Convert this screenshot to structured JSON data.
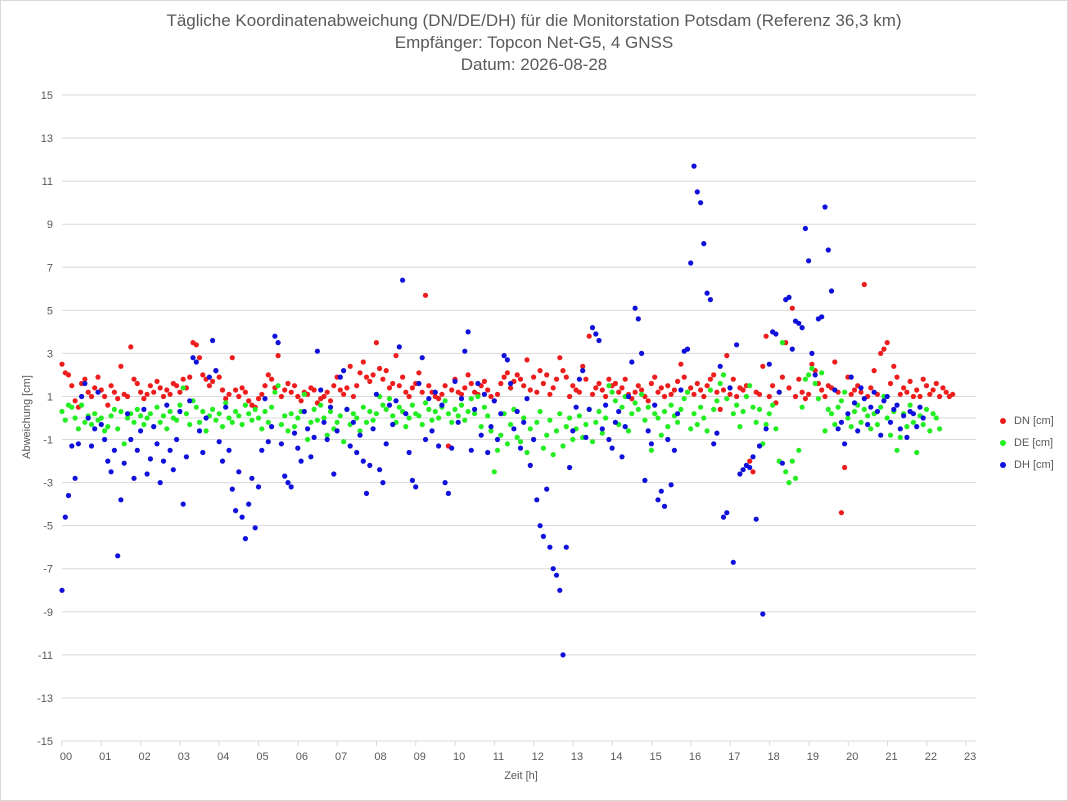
{
  "chart_data": {
    "type": "scatter",
    "title": "Tägliche Koordinatenabweichung (DN/DE/DH) für die Monitorstation Potsdam (Referenz 36,3 km)",
    "subtitle": "Empfänger: Topcon Net-G5, 4 GNSS",
    "date_line": "Datum: 2026-08-28",
    "xlabel": "Zeit [h]",
    "ylabel": "Abweichung [cm]",
    "xlim": [
      0,
      23.25
    ],
    "ylim": [
      -15,
      15
    ],
    "x_ticks": [
      "00",
      "01",
      "02",
      "03",
      "04",
      "05",
      "06",
      "07",
      "08",
      "09",
      "10",
      "11",
      "12",
      "13",
      "14",
      "15",
      "16",
      "17",
      "18",
      "19",
      "20",
      "21",
      "22",
      "23"
    ],
    "y_ticks": [
      "15",
      "13",
      "11",
      "9",
      "7",
      "5",
      "3",
      "1",
      "-1",
      "-3",
      "-5",
      "-7",
      "-9",
      "-11",
      "-13",
      "-15"
    ],
    "legend_position": "right",
    "sampling_step_h": 0.0833,
    "series": [
      {
        "name": "DN [cm]",
        "color": "#ee1c1c",
        "values": [
          2.5,
          2.1,
          2.0,
          1.5,
          0.8,
          0.5,
          1.6,
          1.8,
          1.2,
          1.0,
          1.4,
          1.9,
          1.3,
          1.0,
          0.6,
          1.5,
          1.2,
          0.9,
          2.4,
          1.1,
          1.0,
          3.3,
          1.8,
          1.6,
          1.2,
          0.9,
          1.1,
          1.5,
          1.2,
          1.7,
          1.4,
          1.0,
          1.3,
          1.1,
          1.6,
          1.5,
          1.2,
          1.8,
          1.4,
          1.9,
          3.5,
          3.4,
          2.8,
          2.0,
          1.8,
          1.5,
          1.7,
          2.2,
          1.9,
          1.3,
          0.9,
          1.1,
          2.8,
          1.3,
          1.0,
          1.4,
          1.2,
          0.8,
          0.6,
          0.5,
          0.9,
          1.1,
          1.5,
          2.0,
          1.8,
          1.4,
          2.9,
          1.0,
          1.3,
          1.6,
          1.2,
          1.5,
          1.0,
          0.8,
          1.2,
          1.1,
          1.4,
          1.3,
          0.7,
          0.9,
          1.0,
          1.2,
          0.8,
          1.5,
          1.9,
          1.3,
          1.1,
          1.4,
          2.4,
          1.0,
          1.5,
          2.1,
          2.6,
          1.9,
          1.7,
          2.0,
          3.5,
          2.3,
          1.8,
          2.2,
          1.4,
          1.6,
          2.9,
          1.5,
          1.9,
          1.2,
          1.0,
          1.4,
          1.6,
          2.1,
          1.2,
          5.7,
          1.5,
          1.2,
          1.0,
          0.9,
          1.1,
          1.5,
          -1.3,
          1.3,
          1.8,
          1.2,
          1.1,
          1.4,
          2.0,
          1.6,
          1.2,
          1.1,
          1.5,
          1.7,
          1.3,
          1.0,
          0.8,
          1.1,
          1.6,
          1.9,
          2.1,
          1.4,
          1.7,
          2.0,
          1.8,
          1.5,
          2.7,
          1.3,
          1.9,
          1.2,
          2.2,
          1.6,
          2.0,
          1.1,
          1.4,
          1.8,
          2.8,
          2.2,
          1.9,
          1.0,
          1.5,
          1.3,
          1.2,
          2.4,
          1.8,
          3.8,
          1.1,
          1.4,
          1.6,
          1.3,
          1.0,
          1.8,
          1.5,
          1.6,
          1.2,
          1.4,
          1.8,
          1.1,
          0.9,
          1.2,
          1.5,
          1.3,
          1.0,
          0.8,
          1.6,
          1.9,
          1.2,
          1.4,
          1.0,
          1.5,
          1.1,
          1.3,
          1.7,
          2.5,
          1.9,
          1.2,
          1.4,
          1.1,
          1.6,
          1.3,
          1.0,
          1.5,
          1.8,
          2.0,
          1.2,
          0.4,
          1.3,
          2.9,
          1.1,
          1.8,
          1.0,
          1.4,
          1.3,
          1.5,
          -2.0,
          -2.5,
          1.2,
          1.1,
          2.4,
          3.8,
          1.0,
          1.5,
          0.7,
          1.2,
          1.9,
          3.5,
          1.4,
          5.1,
          1.0,
          1.8,
          1.2,
          0.9,
          1.1,
          2.5,
          2.2,
          1.6,
          1.3,
          1.0,
          1.5,
          1.4,
          2.6,
          1.2,
          -4.4,
          -2.3,
          1.9,
          1.1,
          1.3,
          1.5,
          1.2,
          6.2,
          1.0,
          1.4,
          2.2,
          1.1,
          3.0,
          3.2,
          3.5,
          1.6,
          2.4,
          1.9,
          1.1,
          1.4,
          1.2,
          1.7,
          1.0,
          1.3,
          1.0,
          1.8,
          1.5,
          1.1,
          1.3,
          1.6,
          1.0,
          1.4,
          1.2,
          1.0,
          1.1
        ]
      },
      {
        "name": "DE [cm]",
        "color": "#22ee22",
        "values": [
          0.3,
          -0.1,
          0.6,
          0.5,
          0.0,
          -0.5,
          0.6,
          -0.2,
          0.1,
          -0.3,
          0.2,
          -0.1,
          0.0,
          -0.6,
          -0.4,
          0.1,
          0.4,
          -0.5,
          0.3,
          -1.2,
          0.0,
          0.2,
          -0.2,
          0.4,
          0.1,
          -0.3,
          0.0,
          0.2,
          -0.4,
          0.5,
          -0.2,
          0.1,
          -0.5,
          0.3,
          0.0,
          -0.1,
          0.6,
          1.4,
          0.2,
          -0.3,
          0.8,
          0.5,
          -0.2,
          0.3,
          -0.6,
          0.1,
          0.4,
          -0.1,
          0.2,
          -0.4,
          0.7,
          0.0,
          -0.2,
          0.3,
          0.1,
          -0.3,
          0.6,
          0.2,
          -0.1,
          0.4,
          0.0,
          -0.5,
          0.3,
          -0.2,
          0.5,
          1.2,
          1.5,
          -0.3,
          0.1,
          -0.6,
          0.2,
          -0.4,
          0.0,
          0.3,
          1.1,
          -1.0,
          -0.2,
          0.4,
          -0.1,
          0.6,
          0.0,
          -0.8,
          0.3,
          -0.5,
          -0.2,
          0.1,
          -1.1,
          0.4,
          -0.3,
          0.2,
          0.0,
          -0.6,
          0.5,
          -0.2,
          0.3,
          -0.1,
          0.2,
          1.0,
          0.6,
          0.4,
          0.9,
          0.1,
          -0.2,
          0.5,
          0.3,
          -0.4,
          0.0,
          0.6,
          0.2,
          0.1,
          -0.3,
          0.7,
          0.4,
          -0.1,
          0.3,
          0.0,
          0.5,
          0.8,
          0.2,
          -0.2,
          0.4,
          0.1,
          0.6,
          -0.1,
          0.3,
          0.9,
          0.2,
          1.0,
          -0.4,
          0.5,
          0.1,
          -0.6,
          -2.5,
          -1.5,
          -0.8,
          0.2,
          -1.2,
          -0.3,
          0.4,
          -0.9,
          -1.1,
          0.0,
          -1.6,
          -0.5,
          -1.0,
          -0.2,
          0.3,
          -1.4,
          -0.8,
          -0.1,
          -1.7,
          -0.6,
          0.2,
          -1.3,
          -0.4,
          0.0,
          -1.0,
          -0.5,
          0.1,
          -0.9,
          -0.3,
          0.4,
          -1.1,
          -0.2,
          0.3,
          -0.7,
          0.0,
          1.5,
          1.2,
          0.8,
          -0.3,
          0.5,
          1.0,
          -0.6,
          0.2,
          0.7,
          0.4,
          1.1,
          -0.1,
          0.5,
          -1.5,
          0.2,
          0.0,
          -0.8,
          0.3,
          -0.4,
          0.6,
          0.1,
          -0.2,
          0.4,
          0.9,
          1.2,
          -0.5,
          0.2,
          -0.3,
          0.5,
          0.0,
          -0.6,
          1.3,
          0.4,
          0.8,
          1.6,
          2.0,
          0.9,
          1.4,
          0.2,
          0.6,
          -0.4,
          0.3,
          1.0,
          1.5,
          0.5,
          -0.2,
          0.4,
          -1.2,
          -0.3,
          0.2,
          0.6,
          -0.5,
          -2.0,
          3.5,
          -2.5,
          -3.0,
          -2.0,
          -2.8,
          -1.5,
          0.5,
          1.8,
          2.0,
          2.3,
          1.6,
          0.9,
          2.1,
          -0.6,
          0.4,
          0.2,
          -0.3,
          0.5,
          0.8,
          1.2,
          0.0,
          -0.4,
          0.3,
          0.6,
          -0.2,
          0.4,
          0.1,
          -0.5,
          0.2,
          -0.3,
          0.5,
          1.0,
          0.0,
          -0.8,
          0.3,
          -1.5,
          -0.9,
          0.2,
          -0.4,
          0.6,
          -0.2,
          -1.6,
          0.1,
          -0.3,
          0.4,
          -0.6,
          0.2,
          0.0,
          -0.5
        ]
      },
      {
        "name": "DH [cm]",
        "color": "#1010dd",
        "values": [
          -8.0,
          -4.6,
          -3.6,
          -1.3,
          -2.8,
          -1.2,
          1.0,
          1.6,
          0.0,
          -1.3,
          -0.5,
          1.2,
          -0.3,
          -1.0,
          -2.0,
          -2.5,
          -1.5,
          -6.4,
          -3.8,
          -2.1,
          0.2,
          -1.0,
          -2.8,
          -1.5,
          -0.6,
          0.4,
          -2.6,
          -1.9,
          -0.4,
          -1.2,
          -3.0,
          -2.0,
          0.6,
          -1.5,
          -2.4,
          -1.0,
          0.3,
          -4.0,
          -1.8,
          0.8,
          2.8,
          2.6,
          -0.6,
          -1.6,
          0.0,
          1.9,
          3.6,
          2.2,
          -1.1,
          -2.0,
          0.5,
          -1.5,
          -3.3,
          -4.3,
          -2.5,
          -4.6,
          -5.6,
          -4.0,
          -2.8,
          -5.1,
          -3.2,
          -1.5,
          0.9,
          -1.1,
          -0.4,
          3.8,
          3.5,
          -1.2,
          -2.7,
          -3.0,
          -3.2,
          -0.7,
          -1.4,
          -2.0,
          0.3,
          -0.5,
          -1.8,
          -0.9,
          3.1,
          1.3,
          -0.2,
          -1.0,
          0.5,
          -2.6,
          -0.6,
          1.9,
          2.2,
          0.4,
          -1.3,
          -0.2,
          -1.6,
          -0.8,
          -2.0,
          -3.5,
          -2.2,
          -0.5,
          1.1,
          -2.4,
          -3.0,
          -1.2,
          0.6,
          -0.3,
          0.8,
          3.3,
          6.4,
          0.2,
          -1.6,
          -2.9,
          -3.2,
          1.6,
          2.8,
          -1.0,
          0.9,
          -0.6,
          1.2,
          -1.3,
          0.6,
          -3.0,
          -3.5,
          -1.4,
          1.7,
          -0.2,
          0.9,
          3.1,
          4.0,
          -1.5,
          0.4,
          1.6,
          -0.8,
          1.1,
          -1.6,
          -0.4,
          0.8,
          -1.0,
          0.2,
          2.9,
          2.7,
          1.6,
          -0.5,
          0.3,
          -1.4,
          -0.2,
          0.9,
          -2.2,
          -1.0,
          -3.8,
          -5.0,
          -5.5,
          -3.3,
          -6.0,
          -7.0,
          -7.3,
          -8.0,
          -11.0,
          -6.0,
          -2.3,
          -0.6,
          0.5,
          1.8,
          2.2,
          -0.9,
          0.4,
          4.2,
          3.9,
          3.6,
          -0.5,
          0.6,
          -1.0,
          -1.4,
          -0.2,
          0.3,
          -1.8,
          -0.4,
          1.0,
          2.6,
          5.1,
          4.6,
          3.0,
          -2.9,
          -0.6,
          -1.2,
          0.6,
          -3.8,
          -3.4,
          -4.1,
          -1.0,
          -3.1,
          -1.5,
          0.2,
          1.3,
          3.1,
          3.2,
          7.2,
          11.7,
          10.5,
          10.0,
          8.1,
          5.8,
          5.5,
          -1.2,
          -0.7,
          2.4,
          -4.6,
          -4.4,
          1.4,
          -6.7,
          3.4,
          -2.6,
          -2.4,
          -2.2,
          -2.3,
          -1.8,
          -4.7,
          -1.3,
          -9.1,
          -0.5,
          2.5,
          4.0,
          3.9,
          1.2,
          -2.1,
          5.5,
          5.6,
          3.2,
          4.5,
          4.4,
          4.2,
          8.8,
          7.3,
          3.0,
          2.0,
          4.6,
          4.7,
          9.8,
          7.8,
          5.9,
          1.3,
          -0.5,
          -0.2,
          -1.2,
          0.2,
          1.9,
          0.7,
          -0.6,
          1.4,
          0.9,
          -0.3,
          0.5,
          1.2,
          0.3,
          -0.8,
          0.8,
          1.0,
          -0.2,
          0.4,
          0.6,
          -0.5,
          0.1,
          -0.9,
          0.3,
          0.2,
          -0.4,
          0.5,
          0.0
        ]
      }
    ]
  }
}
